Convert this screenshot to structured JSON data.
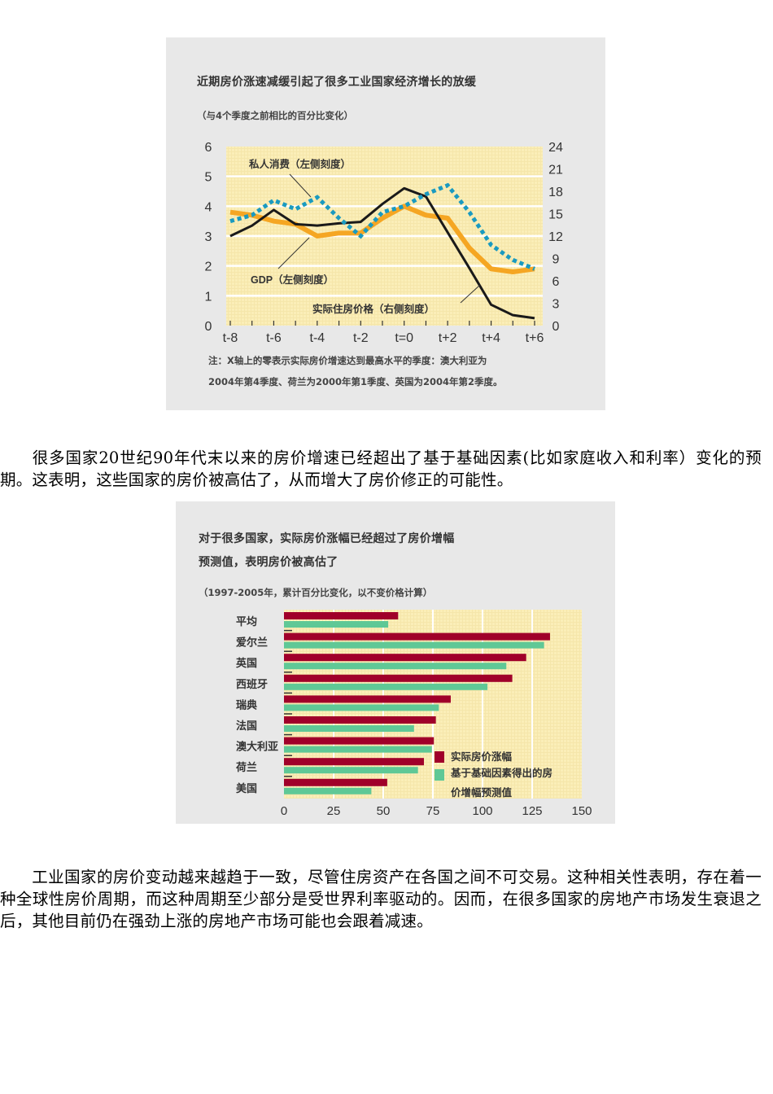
{
  "figure1": {
    "title": "近期房价涨速减缓引起了很多工业国家经济增长的放缓",
    "subtitle": "（与4个季度之前相比的百分比变化）",
    "note_line1": "注：X轴上的零表示实际房价增速达到最高水平的季度：澳大利亚为",
    "note_line2": "2004年第4季度、荷兰为2000年第1季度、英国为2004年第2季度。",
    "labels": {
      "consumption": "私人消费（左侧刻度）",
      "gdp": "GDP（左侧刻度）",
      "house_price": "实际住房价格（右侧刻度）"
    },
    "colors": {
      "background": "#fbeeb8",
      "gdp": "#f5a623",
      "consumption": "#1a9ac0",
      "house_price": "#1a1a1a"
    }
  },
  "figure2": {
    "title_line1": "对于很多国家，实际房价涨幅已经超过了房价增幅",
    "title_line2": "预测值，表明房价被高估了",
    "subtitle": "（1997-2005年，累计百分比变化，以不变价格计算）",
    "legend": {
      "actual": "实际房价涨幅",
      "predicted_line1": "基于基础因素得出的房",
      "predicted_line2": "价增幅预测值"
    },
    "colors": {
      "background": "#fbeeb8",
      "actual": "#a0002a",
      "predicted": "#5fc896"
    }
  },
  "paragraphs": {
    "p1": "很多国家20世纪90年代末以来的房价增速已经超出了基于基础因素(比如家庭收入和利率）变化的预期。这表明，这些国家的房价被高估了，从而增大了房价修正的可能性。",
    "p2": "工业国家的房价变动越来越趋于一致，尽管住房资产在各国之间不可交易。这种相关性表明，存在着一种全球性房价周期，而这种周期至少部分是受世界利率驱动的。因而，在很多国家的房地产市场发生衰退之后，其他目前仍在强劲上涨的房地产市场可能也会跟着减速。"
  },
  "chart_data": [
    {
      "type": "line",
      "title": "近期房价涨速减缓引起了很多工业国家经济增长的放缓",
      "subtitle": "（与4个季度之前相比的百分比变化）",
      "x": [
        "t-8",
        "t-7",
        "t-6",
        "t-5",
        "t-4",
        "t-3",
        "t-2",
        "t-1",
        "t=0",
        "t+1",
        "t+2",
        "t+3",
        "t+4",
        "t+5",
        "t+6"
      ],
      "x_tick_labels": [
        "t-8",
        "t-6",
        "t-4",
        "t-2",
        "t=0",
        "t+2",
        "t+4",
        "t+6"
      ],
      "ylim_left": [
        0,
        6
      ],
      "yticks_left": [
        0,
        1,
        2,
        3,
        4,
        5,
        6
      ],
      "ylim_right": [
        0,
        24
      ],
      "yticks_right": [
        0,
        3,
        6,
        9,
        12,
        15,
        18,
        21,
        24
      ],
      "grid": true,
      "series": [
        {
          "name": "私人消费（左侧刻度）",
          "axis": "left",
          "style": "dotted",
          "values": [
            3.5,
            3.7,
            4.2,
            3.9,
            4.3,
            3.6,
            3.0,
            3.8,
            4.0,
            4.4,
            4.7,
            3.8,
            2.7,
            2.2,
            1.9
          ]
        },
        {
          "name": "GDP（左侧刻度）",
          "axis": "left",
          "style": "solid-thick",
          "values": [
            3.8,
            3.7,
            3.5,
            3.4,
            3.0,
            3.1,
            3.1,
            3.6,
            4.0,
            3.7,
            3.6,
            2.6,
            1.9,
            1.8,
            1.9
          ]
        },
        {
          "name": "实际住房价格（右侧刻度）",
          "axis": "right",
          "style": "solid",
          "values": [
            12.0,
            13.4,
            15.5,
            13.6,
            13.4,
            13.7,
            13.9,
            16.3,
            18.4,
            17.3,
            12.5,
            7.7,
            2.8,
            1.4,
            1.0
          ]
        }
      ],
      "annotation": "注：X轴上的零表示实际房价增速达到最高水平的季度：澳大利亚为2004年第4季度、荷兰为2000年第1季度、英国为2004年第2季度。"
    },
    {
      "type": "bar",
      "orientation": "horizontal",
      "title": "对于很多国家，实际房价涨幅已经超过了房价增幅预测值，表明房价被高估了",
      "subtitle": "（1997-2005年，累计百分比变化，以不变价格计算）",
      "categories": [
        "平均",
        "爱尔兰",
        "英国",
        "西班牙",
        "瑞典",
        "法国",
        "澳大利亚",
        "荷兰",
        "美国"
      ],
      "series": [
        {
          "name": "实际房价涨幅",
          "values": [
            57.5,
            134,
            122,
            115,
            84,
            76.5,
            75.5,
            70.5,
            52
          ]
        },
        {
          "name": "基于基础因素得出的房价增幅预测值",
          "values": [
            52.5,
            131,
            112,
            102.5,
            78,
            65.5,
            74.5,
            67.5,
            44
          ]
        }
      ],
      "xlim": [
        0,
        150
      ],
      "xticks": [
        0,
        25,
        50,
        75,
        100,
        125,
        150
      ],
      "grid": true,
      "legend_position": "lower-right"
    }
  ]
}
